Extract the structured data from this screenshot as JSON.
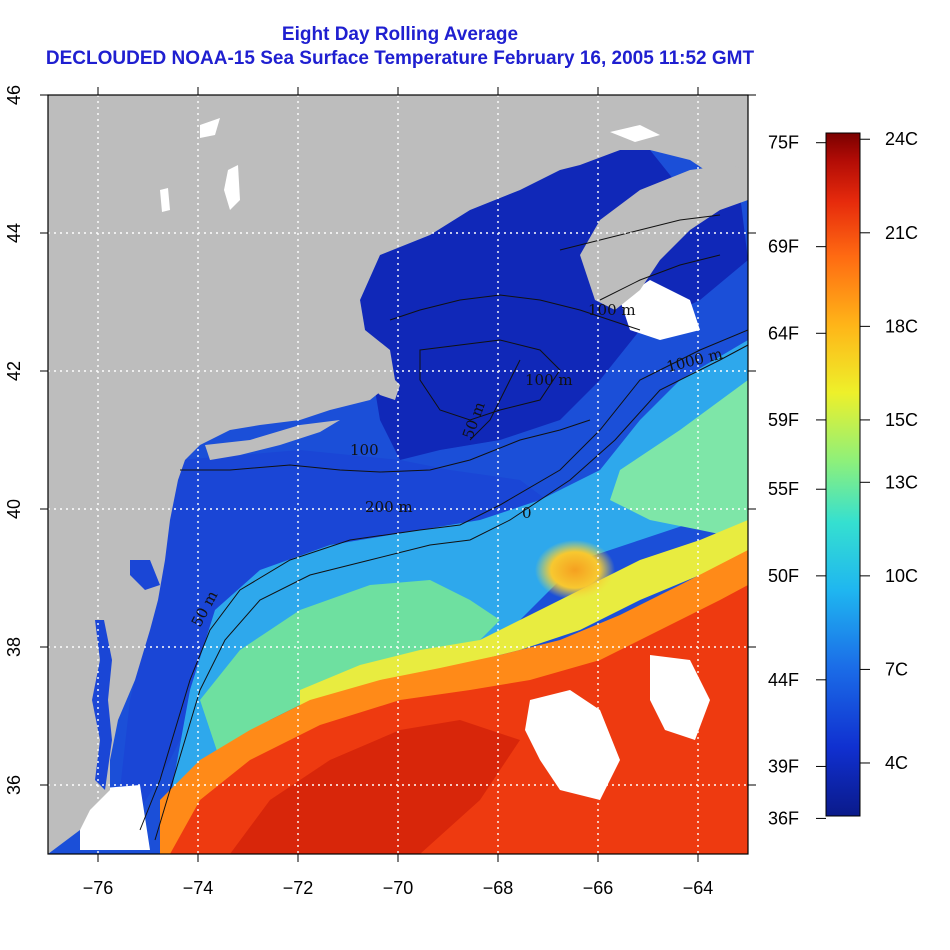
{
  "title": {
    "line1": "Eight Day Rolling Average",
    "line2": "DECLOUDED NOAA-15 Sea Surface Temperature February 16, 2005 11:52 GMT"
  },
  "map": {
    "lon_range": [
      -77,
      -63
    ],
    "lat_range": [
      35,
      46
    ],
    "lon_ticks": [
      -76,
      -74,
      -72,
      -70,
      -68,
      -66,
      -64
    ],
    "lat_ticks": [
      36,
      38,
      40,
      42,
      44,
      46
    ],
    "grid": true,
    "land_color": "#bdbdbd",
    "cloud_color": "#ffffff",
    "contour_labels": [
      "100 m",
      "1000 m",
      "100 m",
      "50 m",
      "100",
      "200 m",
      "0",
      "50 m"
    ]
  },
  "colorbar": {
    "celsius_labels": [
      "24C",
      "21C",
      "18C",
      "15C",
      "13C",
      "10C",
      "7C",
      "4C"
    ],
    "fahrenheit_labels": [
      "75F",
      "69F",
      "64F",
      "59F",
      "55F",
      "50F",
      "44F",
      "39F",
      "36F"
    ],
    "colors": [
      "#0a1a8a",
      "#1030d0",
      "#1b6ee8",
      "#1fb6f0",
      "#35e0d0",
      "#8ef07a",
      "#eef02a",
      "#ffb418",
      "#ff6a12",
      "#e62a0c",
      "#b20c06",
      "#7a0000"
    ]
  }
}
